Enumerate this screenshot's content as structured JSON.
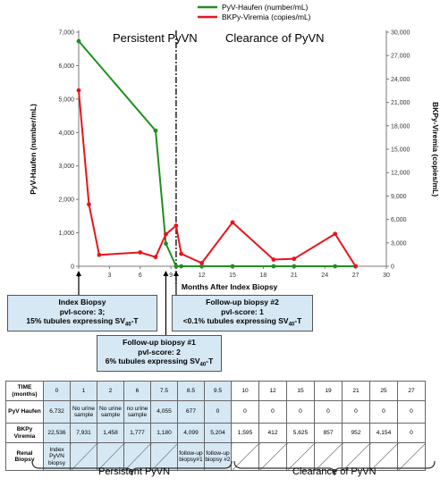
{
  "chart_data": {
    "type": "line",
    "legend": {
      "placement": "top-center",
      "entries": [
        "PyV-Haufen (number/mL)",
        "BKPy-Viremia (copies/mL)"
      ]
    },
    "xlabel": "Months After Index Biopsy",
    "xlim": [
      0,
      30
    ],
    "xticks": [
      "0",
      "3",
      "6",
      "9",
      "12",
      "15",
      "18",
      "21",
      "24",
      "27",
      "30"
    ],
    "ylabel_left": "PyV-Haufen (number/mL)",
    "ylim_left": [
      0,
      7000
    ],
    "yticks_left": [
      "0",
      "1,000",
      "2,000",
      "3,000",
      "4,000",
      "5,000",
      "6,000",
      "7,000"
    ],
    "ylabel_right": "BKPy-Viremia (copies/mL)",
    "ylim_right": [
      0,
      30000
    ],
    "yticks_right": [
      "0",
      "3,000",
      "6,000",
      "9,000",
      "12,000",
      "15,000",
      "18,000",
      "21,000",
      "24,000",
      "27,000",
      "30,000"
    ],
    "divider_x": 9.5,
    "region_labels": [
      "Persistent PyVN",
      "Clearance of PyVN"
    ],
    "series": [
      {
        "name": "PyV-Haufen (number/mL)",
        "axis": "left",
        "color": "#1f8f1f",
        "x": [
          0,
          7.5,
          8.5,
          9.5,
          10,
          12,
          15,
          19,
          21,
          25,
          27
        ],
        "y": [
          6732,
          4055,
          677,
          0,
          0,
          0,
          0,
          0,
          0,
          0,
          0
        ]
      },
      {
        "name": "BKPy-Viremia (copies/mL)",
        "axis": "right",
        "color": "#e8141c",
        "x": [
          0,
          1,
          2,
          6,
          7.5,
          8.5,
          9.5,
          10,
          12,
          15,
          19,
          21,
          25,
          27
        ],
        "y": [
          22536,
          7931,
          1458,
          1777,
          1180,
          4099,
          5204,
          1595,
          412,
          5625,
          857,
          952,
          4154,
          0
        ]
      }
    ],
    "annotations": [
      {
        "lines": [
          "Index Biopsy",
          "pvl-score: 3;",
          "15% tubules expressing SV40-T"
        ],
        "x": 0
      },
      {
        "lines": [
          "Follow-up biopsy #1",
          "pvl-score: 2",
          "6% tubules expressing SV40-T"
        ],
        "x": 8.5
      },
      {
        "lines": [
          "Follow-up biopsy #2",
          "pvl-score: 1",
          "<0.1% tubules expressing SV40-T"
        ],
        "x": 9.5
      }
    ]
  },
  "table": {
    "header": [
      "TIME (months)",
      "0",
      "1",
      "2",
      "6",
      "7.5",
      "8.5",
      "9.5",
      "10",
      "12",
      "15",
      "19",
      "21",
      "25",
      "27"
    ],
    "haufen": [
      "PyV Haufen",
      "6,732",
      "No urine sample",
      "No urine sample",
      "no urine sample",
      "4,055",
      "677",
      "0",
      "0",
      "0",
      "0",
      "0",
      "0",
      "0",
      "0"
    ],
    "viremia": [
      "BKPy Viremia",
      "22,536",
      "7,931",
      "1,458",
      "1,777",
      "1,180",
      "4,099",
      "5,204",
      "1,595",
      "412",
      "5,625",
      "857",
      "952",
      "4,154",
      "0"
    ],
    "biopsy": [
      "Renal Biopsy",
      "Index PyVN biopsy",
      "",
      "",
      "",
      "",
      "follow-up biopsy#1",
      "follow-up biopsy #2",
      "",
      "",
      "",
      "",
      "",
      "",
      ""
    ]
  },
  "brace_labels": [
    "Persistent PyVN",
    "Clearance of  PyVN"
  ]
}
